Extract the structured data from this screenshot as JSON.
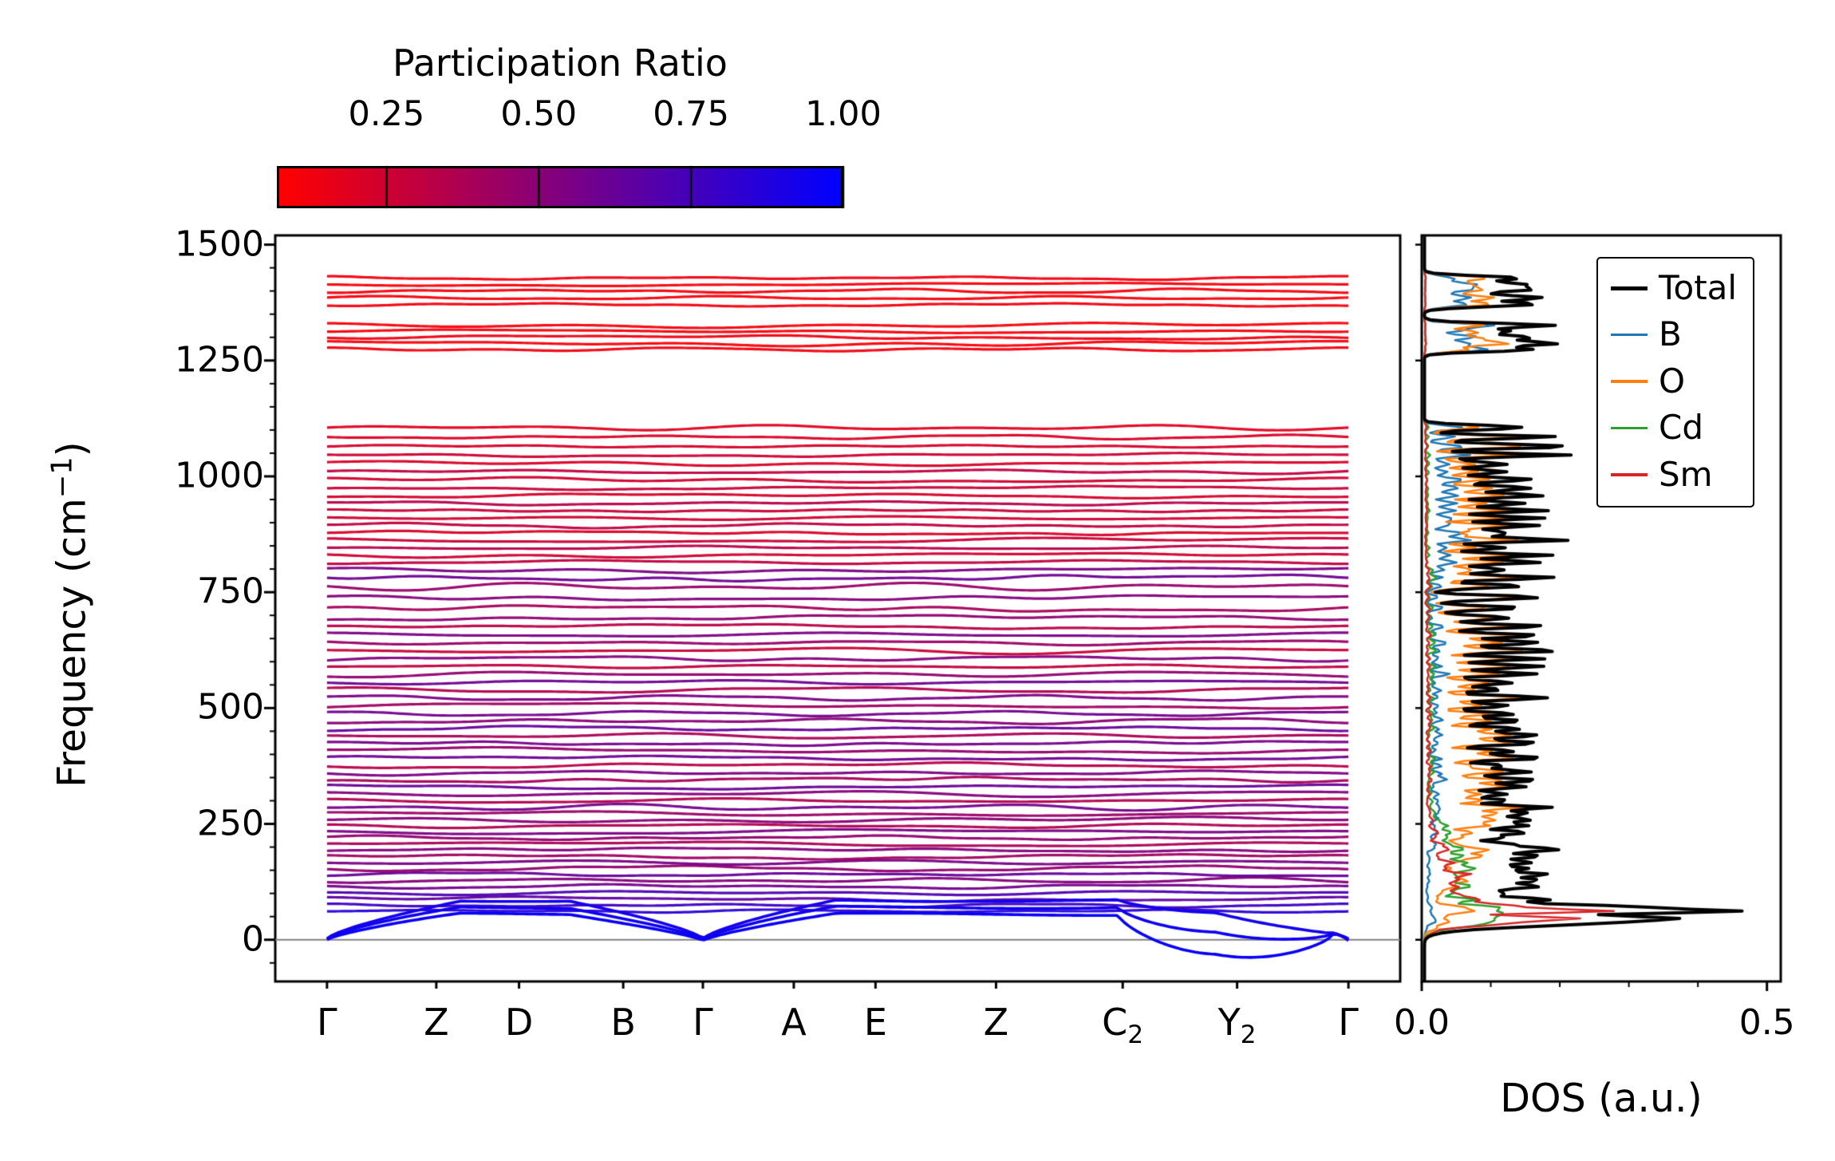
{
  "figure": {
    "colorbar": {
      "title": "Participation Ratio",
      "tick_labels": [
        "0.25",
        "0.50",
        "0.75",
        "1.00"
      ],
      "tick_values": [
        0.25,
        0.5,
        0.75,
        1.0
      ],
      "vmin": 0.07,
      "vmax": 1.0,
      "color_min": "#ff0000",
      "color_max": "#0000ff"
    }
  },
  "chart_data": {
    "type": "line",
    "subtype": "phonon-band-structure-with-dos",
    "band_panel": {
      "ylabel": {
        "pre": "Frequency (cm",
        "sup": "−1",
        "post": ")"
      },
      "ylim": [
        -90,
        1520
      ],
      "yticks": [
        0,
        250,
        500,
        750,
        1000,
        1250,
        1500
      ],
      "ytick_labels": [
        "0",
        "250",
        "500",
        "750",
        "1000",
        "1250",
        "1500"
      ],
      "y_minor_step": 50,
      "x_margin": 0.046,
      "zero_line_color": "#808080",
      "kpath": [
        {
          "base": "Γ",
          "sub": "",
          "x": 0.0
        },
        {
          "base": "Z",
          "sub": "",
          "x": 0.107
        },
        {
          "base": "D",
          "sub": "",
          "x": 0.188
        },
        {
          "base": "B",
          "sub": "",
          "x": 0.29
        },
        {
          "base": "Γ",
          "sub": "",
          "x": 0.368
        },
        {
          "base": "A",
          "sub": "",
          "x": 0.457
        },
        {
          "base": "E",
          "sub": "",
          "x": 0.537
        },
        {
          "base": "Z",
          "sub": "",
          "x": 0.655
        },
        {
          "base": "C",
          "sub": "2",
          "x": 0.779
        },
        {
          "base": "Y",
          "sub": "2",
          "x": 0.891
        },
        {
          "base": "Γ",
          "sub": "",
          "x": 1.0
        }
      ],
      "gamma_positions": [
        0.0,
        0.368,
        1.0
      ],
      "acoustic_branches": [
        {
          "amplitude": 55,
          "participation_ratio": 0.97,
          "dip": 1.0
        },
        {
          "amplitude": 70,
          "participation_ratio": 0.95,
          "dip": 0.55
        },
        {
          "amplitude": 85,
          "participation_ratio": 0.93,
          "dip": 0.25
        }
      ],
      "acoustic_weights": {
        "B": 0.05,
        "O": 0.15,
        "Cd": 0.32,
        "Sm": 0.48
      },
      "band_columns": [
        "frequency_cm1",
        "dispersion_amplitude",
        "participation_ratio",
        "weight_B",
        "weight_O",
        "weight_Cd",
        "weight_Sm"
      ],
      "bands": [
        [
          62,
          7,
          0.85,
          0.02,
          0.18,
          0.35,
          0.45
        ],
        [
          74,
          9,
          0.78,
          0.02,
          0.2,
          0.38,
          0.4
        ],
        [
          88,
          11,
          0.66,
          0.03,
          0.22,
          0.35,
          0.4
        ],
        [
          101,
          9,
          0.72,
          0.03,
          0.25,
          0.32,
          0.4
        ],
        [
          115,
          10,
          0.58,
          0.04,
          0.26,
          0.3,
          0.4
        ],
        [
          128,
          12,
          0.52,
          0.04,
          0.28,
          0.33,
          0.35
        ],
        [
          141,
          9,
          0.63,
          0.05,
          0.3,
          0.35,
          0.3
        ],
        [
          154,
          11,
          0.47,
          0.05,
          0.33,
          0.37,
          0.25
        ],
        [
          167,
          10,
          0.56,
          0.06,
          0.36,
          0.33,
          0.25
        ],
        [
          180,
          12,
          0.42,
          0.06,
          0.4,
          0.34,
          0.2
        ],
        [
          194,
          10,
          0.52,
          0.07,
          0.45,
          0.3,
          0.18
        ],
        [
          207,
          12,
          0.38,
          0.08,
          0.5,
          0.27,
          0.15
        ],
        [
          220,
          10,
          0.47,
          0.08,
          0.55,
          0.25,
          0.12
        ],
        [
          233,
          12,
          0.55,
          0.09,
          0.58,
          0.23,
          0.1
        ],
        [
          246,
          10,
          0.36,
          0.1,
          0.62,
          0.2,
          0.08
        ],
        [
          259,
          12,
          0.5,
          0.1,
          0.66,
          0.18,
          0.06
        ],
        [
          272,
          11,
          0.44,
          0.12,
          0.74,
          0.09,
          0.05
        ],
        [
          286,
          13,
          0.58,
          0.18,
          0.7,
          0.07,
          0.05
        ],
        [
          300,
          10,
          0.35,
          0.12,
          0.74,
          0.09,
          0.05
        ],
        [
          315,
          14,
          0.52,
          0.18,
          0.7,
          0.07,
          0.05
        ],
        [
          330,
          11,
          0.62,
          0.12,
          0.74,
          0.09,
          0.05
        ],
        [
          345,
          12,
          0.4,
          0.18,
          0.7,
          0.07,
          0.05
        ],
        [
          360,
          10,
          0.55,
          0.12,
          0.74,
          0.09,
          0.05
        ],
        [
          376,
          13,
          0.33,
          0.18,
          0.7,
          0.07,
          0.05
        ],
        [
          392,
          11,
          0.6,
          0.12,
          0.74,
          0.09,
          0.05
        ],
        [
          408,
          14,
          0.46,
          0.18,
          0.7,
          0.07,
          0.05
        ],
        [
          424,
          10,
          0.57,
          0.12,
          0.74,
          0.09,
          0.05
        ],
        [
          440,
          12,
          0.38,
          0.18,
          0.7,
          0.07,
          0.05
        ],
        [
          456,
          11,
          0.63,
          0.12,
          0.74,
          0.09,
          0.05
        ],
        [
          472,
          13,
          0.5,
          0.18,
          0.7,
          0.07,
          0.05
        ],
        [
          488,
          10,
          0.58,
          0.12,
          0.74,
          0.09,
          0.05
        ],
        [
          505,
          14,
          0.42,
          0.18,
          0.7,
          0.07,
          0.05
        ],
        [
          522,
          11,
          0.55,
          0.12,
          0.74,
          0.09,
          0.05
        ],
        [
          539,
          12,
          0.35,
          0.18,
          0.7,
          0.07,
          0.05
        ],
        [
          556,
          10,
          0.6,
          0.12,
          0.74,
          0.09,
          0.05
        ],
        [
          573,
          13,
          0.47,
          0.18,
          0.7,
          0.07,
          0.05
        ],
        [
          590,
          11,
          0.3,
          0.12,
          0.74,
          0.09,
          0.05
        ],
        [
          607,
          12,
          0.52,
          0.18,
          0.7,
          0.07,
          0.05
        ],
        [
          624,
          14,
          0.27,
          0.12,
          0.74,
          0.09,
          0.05
        ],
        [
          641,
          10,
          0.44,
          0.18,
          0.7,
          0.07,
          0.05
        ],
        [
          658,
          12,
          0.55,
          0.12,
          0.74,
          0.09,
          0.05
        ],
        [
          676,
          11,
          0.32,
          0.18,
          0.7,
          0.07,
          0.05
        ],
        [
          695,
          13,
          0.48,
          0.12,
          0.74,
          0.09,
          0.05
        ],
        [
          715,
          15,
          0.4,
          0.18,
          0.7,
          0.07,
          0.05
        ],
        [
          738,
          12,
          0.52,
          0.12,
          0.74,
          0.09,
          0.05
        ],
        [
          762,
          16,
          0.45,
          0.18,
          0.7,
          0.07,
          0.05
        ],
        [
          781,
          14,
          0.6,
          0.12,
          0.74,
          0.09,
          0.05
        ],
        [
          798,
          12,
          0.55,
          0.18,
          0.7,
          0.07,
          0.05
        ],
        [
          815,
          9,
          0.3,
          0.3,
          0.64,
          0.04,
          0.02
        ],
        [
          830,
          11,
          0.24,
          0.3,
          0.64,
          0.04,
          0.02
        ],
        [
          846,
          8,
          0.33,
          0.3,
          0.64,
          0.04,
          0.02
        ],
        [
          862,
          12,
          0.27,
          0.3,
          0.64,
          0.04,
          0.02
        ],
        [
          878,
          9,
          0.21,
          0.3,
          0.64,
          0.04,
          0.02
        ],
        [
          894,
          11,
          0.3,
          0.3,
          0.64,
          0.04,
          0.02
        ],
        [
          910,
          8,
          0.24,
          0.3,
          0.64,
          0.04,
          0.02
        ],
        [
          926,
          12,
          0.27,
          0.3,
          0.64,
          0.04,
          0.02
        ],
        [
          942,
          9,
          0.33,
          0.3,
          0.64,
          0.04,
          0.02
        ],
        [
          958,
          11,
          0.22,
          0.3,
          0.64,
          0.04,
          0.02
        ],
        [
          975,
          8,
          0.27,
          0.3,
          0.64,
          0.04,
          0.02
        ],
        [
          992,
          12,
          0.24,
          0.3,
          0.64,
          0.04,
          0.02
        ],
        [
          1010,
          9,
          0.3,
          0.3,
          0.64,
          0.04,
          0.02
        ],
        [
          1028,
          11,
          0.21,
          0.3,
          0.64,
          0.04,
          0.02
        ],
        [
          1046,
          8,
          0.25,
          0.3,
          0.64,
          0.04,
          0.02
        ],
        [
          1065,
          12,
          0.22,
          0.3,
          0.64,
          0.04,
          0.02
        ],
        [
          1085,
          10,
          0.2,
          0.3,
          0.64,
          0.04,
          0.02
        ],
        [
          1105,
          11,
          0.18,
          0.3,
          0.64,
          0.04,
          0.02
        ],
        [
          1274,
          9,
          0.12,
          0.44,
          0.54,
          0.01,
          0.01
        ],
        [
          1287,
          12,
          0.1,
          0.44,
          0.54,
          0.01,
          0.01
        ],
        [
          1300,
          10,
          0.13,
          0.44,
          0.54,
          0.01,
          0.01
        ],
        [
          1313,
          8,
          0.11,
          0.44,
          0.54,
          0.01,
          0.01
        ],
        [
          1326,
          11,
          0.1,
          0.44,
          0.54,
          0.01,
          0.01
        ],
        [
          1370,
          9,
          0.12,
          0.44,
          0.54,
          0.01,
          0.01
        ],
        [
          1385,
          12,
          0.1,
          0.44,
          0.54,
          0.01,
          0.01
        ],
        [
          1400,
          10,
          0.11,
          0.44,
          0.54,
          0.01,
          0.01
        ],
        [
          1414,
          9,
          0.1,
          0.44,
          0.54,
          0.01,
          0.01
        ],
        [
          1428,
          8,
          0.12,
          0.44,
          0.54,
          0.01,
          0.01
        ]
      ]
    },
    "dos_panel": {
      "xlabel": "DOS (a.u.)",
      "xlim": [
        0,
        0.52
      ],
      "xticks": [
        0.0,
        0.5
      ],
      "xtick_labels": [
        "0.0",
        "0.5"
      ],
      "x_minor_step": 0.1,
      "dos_sigma": 7,
      "dos_peak_total": 0.46,
      "series": [
        {
          "name": "Total",
          "color": "#000000",
          "linewidth": 4
        },
        {
          "name": "B",
          "color": "#1f77b4",
          "linewidth": 2.5
        },
        {
          "name": "O",
          "color": "#ff7f0e",
          "linewidth": 2.5
        },
        {
          "name": "Cd",
          "color": "#2ca02c",
          "linewidth": 2.5
        },
        {
          "name": "Sm",
          "color": "#d62728",
          "linewidth": 2.5
        }
      ]
    }
  }
}
